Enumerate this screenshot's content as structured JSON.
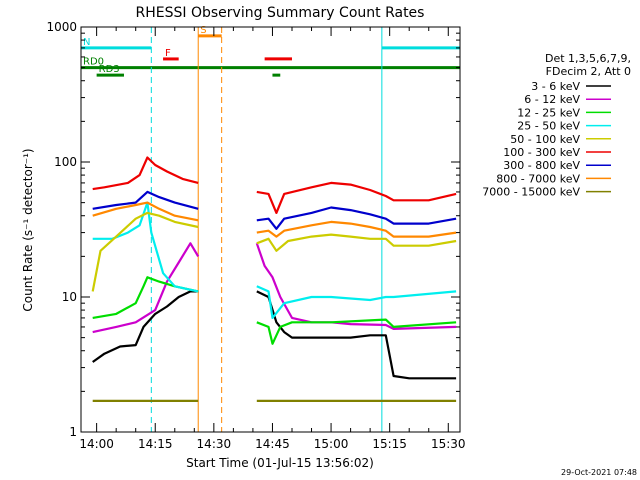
{
  "chart_data": {
    "type": "line",
    "title": "RHESSI Observing Summary Count Rates",
    "xlabel": "Start Time (01-Jul-15 13:56:02)",
    "ylabel": "Count Rate (s⁻¹ detector⁻¹)",
    "yscale": "log",
    "ylim": [
      1,
      1000
    ],
    "xlim": [
      "13:56",
      "15:33"
    ],
    "xticks": [
      "14:00",
      "14:15",
      "14:30",
      "14:45",
      "15:00",
      "15:15",
      "15:30"
    ],
    "yticks": [
      "1",
      "10",
      "100",
      "1000"
    ],
    "grid": false,
    "legend_position": "right",
    "legend_header": [
      "Det 1,3,5,6,7,9,",
      "FDecim 2, Att 0"
    ],
    "gaps": [
      [
        "14:26",
        "14:41"
      ]
    ],
    "series": [
      {
        "name": "3 - 6 keV",
        "color": "#000000",
        "points": [
          [
            "13:59",
            3.3
          ],
          [
            "14:02",
            3.8
          ],
          [
            "14:06",
            4.3
          ],
          [
            "14:10",
            4.4
          ],
          [
            "14:12",
            6
          ],
          [
            "14:15",
            7.5
          ],
          [
            "14:18",
            8.5
          ],
          [
            "14:21",
            10
          ],
          [
            "14:24",
            11
          ],
          [
            "14:26",
            11
          ],
          [
            "14:41",
            11
          ],
          [
            "14:44",
            10
          ],
          [
            "14:46",
            6.5
          ],
          [
            "14:48",
            5.5
          ],
          [
            "14:50",
            5
          ],
          [
            "14:55",
            5
          ],
          [
            "15:05",
            5
          ],
          [
            "15:10",
            5.2
          ],
          [
            "15:14",
            5.2
          ],
          [
            "15:16",
            2.6
          ],
          [
            "15:20",
            2.5
          ],
          [
            "15:25",
            2.5
          ],
          [
            "15:32",
            2.5
          ]
        ]
      },
      {
        "name": "6 - 12 keV",
        "color": "#cc00cc",
        "points": [
          [
            "13:59",
            5.5
          ],
          [
            "14:05",
            6
          ],
          [
            "14:10",
            6.5
          ],
          [
            "14:15",
            8
          ],
          [
            "14:18",
            13
          ],
          [
            "14:21",
            18
          ],
          [
            "14:24",
            25
          ],
          [
            "14:26",
            20
          ],
          [
            "14:41",
            25
          ],
          [
            "14:43",
            17
          ],
          [
            "14:45",
            14
          ],
          [
            "14:47",
            10
          ],
          [
            "14:50",
            7
          ],
          [
            "14:55",
            6.5
          ],
          [
            "15:00",
            6.5
          ],
          [
            "15:05",
            6.3
          ],
          [
            "15:14",
            6.2
          ],
          [
            "15:16",
            5.8
          ],
          [
            "15:32",
            6
          ]
        ]
      },
      {
        "name": "12 - 25 keV",
        "color": "#00dd00",
        "points": [
          [
            "13:59",
            7
          ],
          [
            "14:05",
            7.5
          ],
          [
            "14:10",
            9
          ],
          [
            "14:12",
            12
          ],
          [
            "14:13",
            14
          ],
          [
            "14:16",
            13
          ],
          [
            "14:20",
            12
          ],
          [
            "14:26",
            11
          ],
          [
            "14:41",
            6.5
          ],
          [
            "14:44",
            6
          ],
          [
            "14:45",
            4.5
          ],
          [
            "14:47",
            6
          ],
          [
            "14:50",
            6.5
          ],
          [
            "15:00",
            6.5
          ],
          [
            "15:14",
            6.8
          ],
          [
            "15:16",
            6
          ],
          [
            "15:32",
            6.5
          ]
        ]
      },
      {
        "name": "25 - 50 keV",
        "color": "#00eeee",
        "points": [
          [
            "13:59",
            27
          ],
          [
            "14:04",
            27
          ],
          [
            "14:08",
            30
          ],
          [
            "14:11",
            34
          ],
          [
            "14:13",
            50
          ],
          [
            "14:14",
            30
          ],
          [
            "14:17",
            15
          ],
          [
            "14:20",
            12
          ],
          [
            "14:26",
            11
          ],
          [
            "14:41",
            12
          ],
          [
            "14:44",
            11
          ],
          [
            "14:45",
            7
          ],
          [
            "14:48",
            9
          ],
          [
            "14:55",
            10
          ],
          [
            "15:00",
            10
          ],
          [
            "15:10",
            9.5
          ],
          [
            "15:14",
            10
          ],
          [
            "15:16",
            10
          ],
          [
            "15:32",
            11
          ]
        ]
      },
      {
        "name": "50 - 100 keV",
        "color": "#cccc00",
        "points": [
          [
            "13:59",
            11
          ],
          [
            "14:01",
            22
          ],
          [
            "14:05",
            28
          ],
          [
            "14:10",
            38
          ],
          [
            "14:13",
            42
          ],
          [
            "14:16",
            40
          ],
          [
            "14:20",
            36
          ],
          [
            "14:26",
            33
          ],
          [
            "14:41",
            25
          ],
          [
            "14:44",
            27
          ],
          [
            "14:46",
            22
          ],
          [
            "14:49",
            26
          ],
          [
            "14:55",
            28
          ],
          [
            "15:00",
            29
          ],
          [
            "15:05",
            28
          ],
          [
            "15:10",
            27
          ],
          [
            "15:14",
            27
          ],
          [
            "15:16",
            24
          ],
          [
            "15:25",
            24
          ],
          [
            "15:32",
            26
          ]
        ]
      },
      {
        "name": "100 - 300 keV",
        "color": "#ee0000",
        "points": [
          [
            "13:59",
            63
          ],
          [
            "14:02",
            65
          ],
          [
            "14:08",
            70
          ],
          [
            "14:11",
            80
          ],
          [
            "14:13",
            108
          ],
          [
            "14:15",
            95
          ],
          [
            "14:18",
            85
          ],
          [
            "14:22",
            75
          ],
          [
            "14:26",
            70
          ],
          [
            "14:41",
            60
          ],
          [
            "14:44",
            58
          ],
          [
            "14:46",
            42
          ],
          [
            "14:48",
            58
          ],
          [
            "14:55",
            65
          ],
          [
            "15:00",
            70
          ],
          [
            "15:05",
            68
          ],
          [
            "15:10",
            62
          ],
          [
            "15:14",
            56
          ],
          [
            "15:16",
            52
          ],
          [
            "15:25",
            52
          ],
          [
            "15:32",
            58
          ]
        ]
      },
      {
        "name": "300 - 800 keV",
        "color": "#0000cc",
        "points": [
          [
            "13:59",
            45
          ],
          [
            "14:05",
            48
          ],
          [
            "14:10",
            50
          ],
          [
            "14:13",
            60
          ],
          [
            "14:16",
            55
          ],
          [
            "14:20",
            50
          ],
          [
            "14:26",
            45
          ],
          [
            "14:41",
            37
          ],
          [
            "14:44",
            38
          ],
          [
            "14:46",
            32
          ],
          [
            "14:48",
            38
          ],
          [
            "14:55",
            42
          ],
          [
            "15:00",
            46
          ],
          [
            "15:05",
            44
          ],
          [
            "15:10",
            41
          ],
          [
            "15:14",
            38
          ],
          [
            "15:16",
            35
          ],
          [
            "15:25",
            35
          ],
          [
            "15:32",
            38
          ]
        ]
      },
      {
        "name": "800 - 7000 keV",
        "color": "#ff8800",
        "points": [
          [
            "13:59",
            40
          ],
          [
            "14:05",
            45
          ],
          [
            "14:10",
            48
          ],
          [
            "14:13",
            50
          ],
          [
            "14:16",
            45
          ],
          [
            "14:20",
            40
          ],
          [
            "14:26",
            37
          ],
          [
            "14:41",
            30
          ],
          [
            "14:44",
            31
          ],
          [
            "14:46",
            28
          ],
          [
            "14:48",
            31
          ],
          [
            "14:55",
            34
          ],
          [
            "15:00",
            36
          ],
          [
            "15:05",
            35
          ],
          [
            "15:10",
            33
          ],
          [
            "15:14",
            31
          ],
          [
            "15:16",
            28
          ],
          [
            "15:25",
            28
          ],
          [
            "15:32",
            30
          ]
        ]
      },
      {
        "name": "7000 - 15000 keV",
        "color": "#808000",
        "points": [
          [
            "13:59",
            1.7
          ],
          [
            "14:05",
            1.7
          ],
          [
            "14:10",
            1.7
          ],
          [
            "14:15",
            1.7
          ],
          [
            "14:20",
            1.7
          ],
          [
            "14:26",
            1.7
          ],
          [
            "14:41",
            1.7
          ],
          [
            "14:50",
            1.7
          ],
          [
            "15:00",
            1.7
          ],
          [
            "15:10",
            1.7
          ],
          [
            "15:14",
            1.7
          ],
          [
            "15:20",
            1.7
          ],
          [
            "15:32",
            1.7
          ]
        ]
      }
    ],
    "flags": [
      {
        "label": "N",
        "color": "#00dddd",
        "y": 700,
        "segments": [
          [
            "13:56",
            "14:14"
          ],
          [
            "15:13",
            "15:33"
          ]
        ]
      },
      {
        "label": "F",
        "color": "#ee0000",
        "y": 580,
        "segments": [
          [
            "14:17",
            "14:21"
          ],
          [
            "14:43",
            "14:50"
          ]
        ]
      },
      {
        "label": "S",
        "color": "#ff8800",
        "y": 860,
        "segments": [
          [
            "14:26",
            "14:32"
          ]
        ]
      },
      {
        "label": "RD0",
        "color": "#008000",
        "y": 500,
        "segments": [
          [
            "13:56",
            "15:33"
          ]
        ]
      },
      {
        "label": "RD3",
        "color": "#008000",
        "y": 440,
        "segments": [
          [
            "14:00",
            "14:07"
          ],
          [
            "14:45",
            "14:47"
          ]
        ]
      }
    ],
    "vlines": [
      {
        "time": "13:56",
        "color": "#00dddd",
        "style": "solid"
      },
      {
        "time": "14:14",
        "color": "#00dddd",
        "style": "dashed"
      },
      {
        "time": "14:26",
        "color": "#ff8800",
        "style": "solid"
      },
      {
        "time": "14:32",
        "color": "#ff8800",
        "style": "dashed"
      },
      {
        "time": "15:13",
        "color": "#00dddd",
        "style": "solid"
      },
      {
        "time": "15:33",
        "color": "#00dddd",
        "style": "dashed"
      }
    ],
    "timestamp": "29-Oct-2021 07:48"
  }
}
